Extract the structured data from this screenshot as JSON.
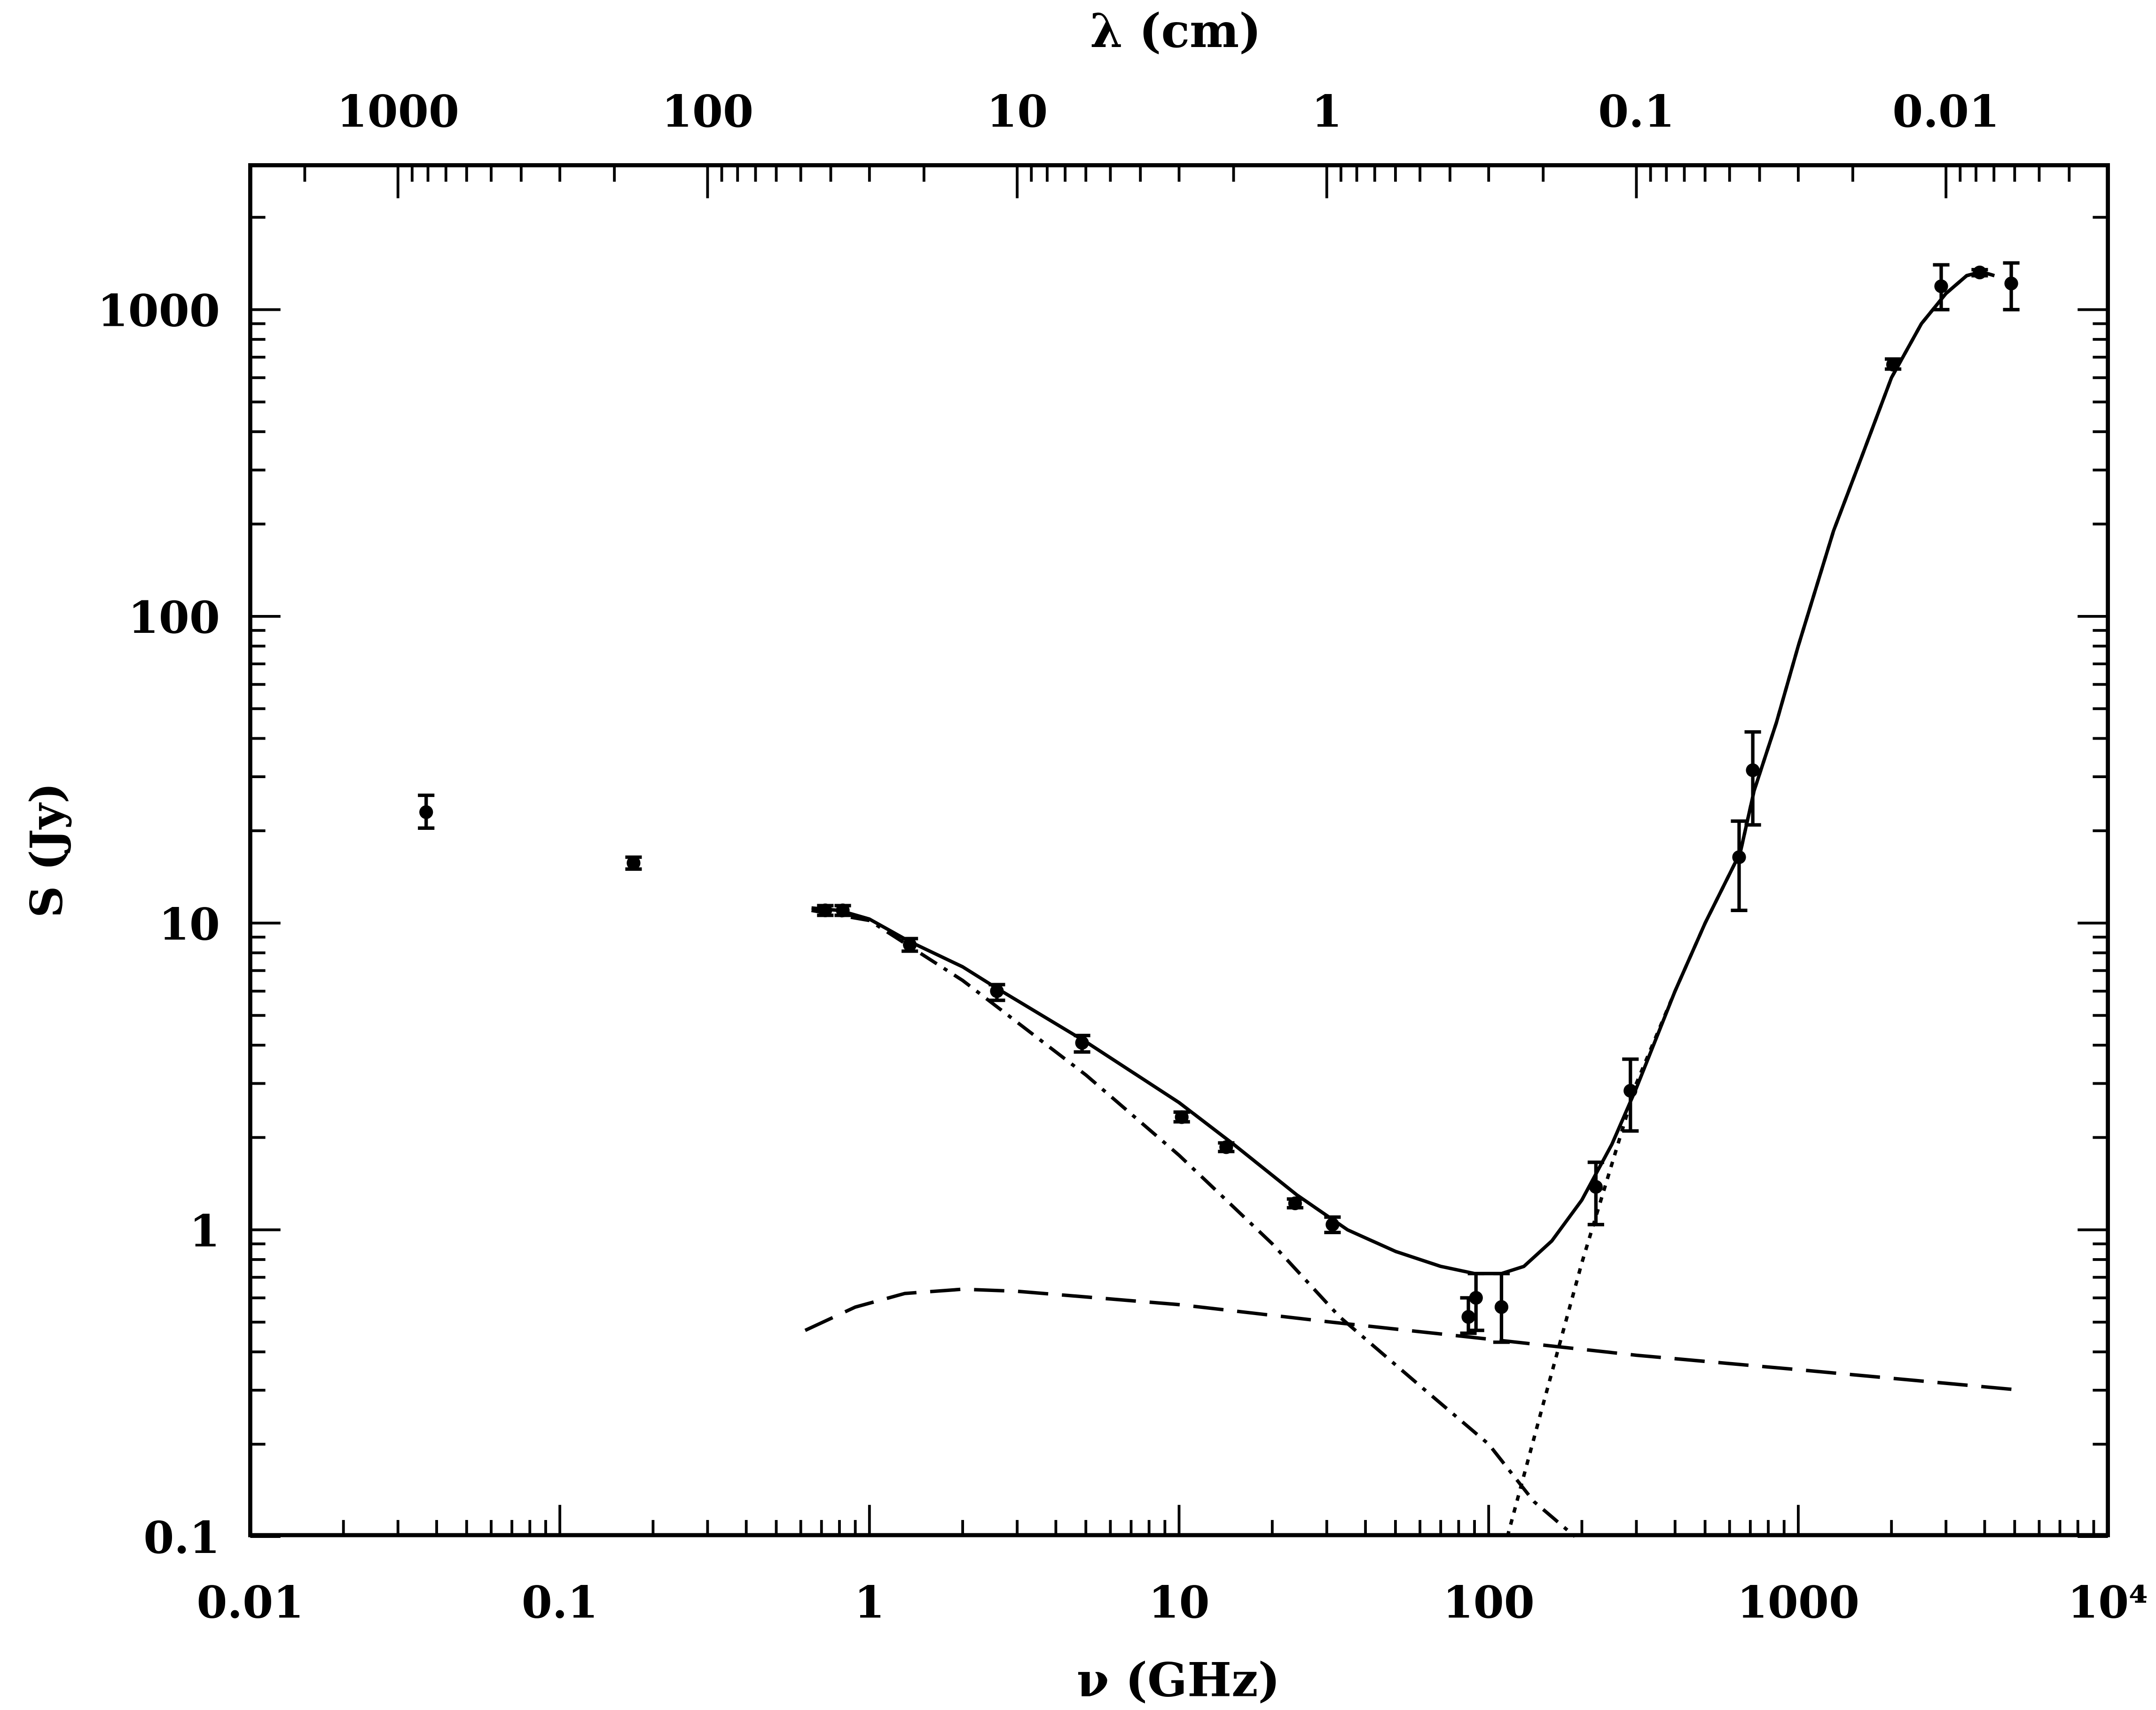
{
  "chart_data": {
    "type": "scatter",
    "title": "",
    "xlabel": "ν (GHz)",
    "ylabel": "S (Jy)",
    "top_xlabel": "λ (cm)",
    "xscale": "log",
    "yscale": "log",
    "xlim": [
      0.01,
      10000
    ],
    "ylim": [
      0.1,
      2900
    ],
    "grid": false,
    "legend": "none",
    "x_tick_labels": [
      "0.01",
      "0.1",
      "1",
      "10",
      "100",
      "1000",
      "10⁴"
    ],
    "x_ticks": [
      0.01,
      0.1,
      1,
      10,
      100,
      1000,
      10000
    ],
    "y_tick_labels": [
      "0.1",
      "1",
      "10",
      "100",
      "1000"
    ],
    "y_ticks": [
      0.1,
      1,
      10,
      100,
      1000
    ],
    "top_tick_labels": [
      "1000",
      "100",
      "10",
      "1",
      "0.1",
      "0.01"
    ],
    "top_ticks_cm": [
      1000,
      100,
      10,
      1,
      0.1,
      0.01
    ],
    "points": [
      {
        "x": 0.037,
        "y": 23,
        "err": [
          20.4,
          26.1
        ]
      },
      {
        "x": 0.173,
        "y": 15.7,
        "err": [
          15.0,
          16.4
        ]
      },
      {
        "x": 0.72,
        "y": 11.0,
        "err": [
          10.6,
          11.4
        ]
      },
      {
        "x": 0.82,
        "y": 11.0,
        "err": [
          10.6,
          11.4
        ]
      },
      {
        "x": 1.35,
        "y": 8.5,
        "err": [
          8.1,
          8.9
        ]
      },
      {
        "x": 2.58,
        "y": 6.0,
        "err": [
          5.6,
          6.3
        ]
      },
      {
        "x": 4.86,
        "y": 4.07,
        "err": [
          3.8,
          4.3
        ]
      },
      {
        "x": 10.2,
        "y": 2.33,
        "err": [
          2.25,
          2.42
        ]
      },
      {
        "x": 14.2,
        "y": 1.86,
        "err": [
          1.8,
          1.92
        ]
      },
      {
        "x": 23.7,
        "y": 1.22,
        "err": [
          1.18,
          1.26
        ]
      },
      {
        "x": 31.3,
        "y": 1.04,
        "err": [
          0.98,
          1.1
        ]
      },
      {
        "x": 86,
        "y": 0.52,
        "err": [
          0.46,
          0.6
        ]
      },
      {
        "x": 91,
        "y": 0.6,
        "err": [
          0.47,
          0.72
        ]
      },
      {
        "x": 110,
        "y": 0.56,
        "err": [
          0.43,
          0.72
        ]
      },
      {
        "x": 222,
        "y": 1.38,
        "err": [
          1.04,
          1.66
        ]
      },
      {
        "x": 287,
        "y": 2.84,
        "err": [
          2.1,
          3.6
        ]
      },
      {
        "x": 644,
        "y": 16.4,
        "err": [
          11,
          21.5
        ]
      },
      {
        "x": 713,
        "y": 31.5,
        "err": [
          20.9,
          42
        ]
      },
      {
        "x": 2024,
        "y": 662,
        "err": [
          640,
          690
        ]
      },
      {
        "x": 2895,
        "y": 1192,
        "err": [
          1000,
          1400
        ]
      },
      {
        "x": 3855,
        "y": 1322,
        "err": [
          1290,
          1350
        ]
      },
      {
        "x": 4875,
        "y": 1217,
        "err": [
          1000,
          1420
        ]
      }
    ],
    "curves": [
      {
        "style": "solid",
        "points": [
          [
            0.65,
            11.2
          ],
          [
            0.8,
            11.0
          ],
          [
            1.0,
            10.3
          ],
          [
            1.35,
            8.7
          ],
          [
            2,
            7.2
          ],
          [
            2.6,
            6.1
          ],
          [
            5,
            4.1
          ],
          [
            10,
            2.6
          ],
          [
            15,
            1.9
          ],
          [
            24,
            1.3
          ],
          [
            35,
            1.0
          ],
          [
            50,
            0.85
          ],
          [
            70,
            0.76
          ],
          [
            90,
            0.72
          ],
          [
            110,
            0.72
          ],
          [
            130,
            0.76
          ],
          [
            160,
            0.92
          ],
          [
            200,
            1.25
          ],
          [
            250,
            1.9
          ],
          [
            300,
            2.9
          ],
          [
            400,
            6
          ],
          [
            500,
            10
          ],
          [
            650,
            17
          ],
          [
            720,
            27
          ],
          [
            850,
            45
          ],
          [
            1000,
            80
          ],
          [
            1300,
            190
          ],
          [
            1600,
            330
          ],
          [
            2000,
            600
          ],
          [
            2500,
            900
          ],
          [
            3000,
            1130
          ],
          [
            3500,
            1290
          ],
          [
            3900,
            1330
          ],
          [
            4300,
            1290
          ]
        ]
      },
      {
        "style": "dash-dot",
        "points": [
          [
            0.65,
            11
          ],
          [
            1,
            10.2
          ],
          [
            2,
            6.5
          ],
          [
            5,
            3.2
          ],
          [
            10,
            1.75
          ],
          [
            20,
            0.9
          ],
          [
            33,
            0.52
          ],
          [
            60,
            0.31
          ],
          [
            100,
            0.2
          ],
          [
            140,
            0.13
          ],
          [
            190,
            0.1
          ]
        ]
      },
      {
        "style": "dashed",
        "points": [
          [
            0.62,
            0.47
          ],
          [
            0.9,
            0.56
          ],
          [
            1.3,
            0.62
          ],
          [
            2,
            0.64
          ],
          [
            3,
            0.63
          ],
          [
            10,
            0.57
          ],
          [
            31,
            0.5
          ],
          [
            100,
            0.44
          ],
          [
            300,
            0.39
          ],
          [
            1000,
            0.35
          ],
          [
            5240,
            0.3
          ]
        ]
      },
      {
        "style": "dotted",
        "points": [
          [
            115,
            0.1
          ],
          [
            150,
            0.27
          ],
          [
            200,
            0.78
          ],
          [
            300,
            3.0
          ],
          [
            400,
            6
          ],
          [
            500,
            10
          ],
          [
            650,
            17
          ],
          [
            720,
            27
          ],
          [
            850,
            45
          ],
          [
            1000,
            80
          ],
          [
            1300,
            190
          ],
          [
            1600,
            330
          ],
          [
            2000,
            600
          ],
          [
            2500,
            900
          ],
          [
            3000,
            1130
          ],
          [
            3500,
            1290
          ],
          [
            3900,
            1330
          ],
          [
            4300,
            1290
          ]
        ]
      }
    ]
  }
}
